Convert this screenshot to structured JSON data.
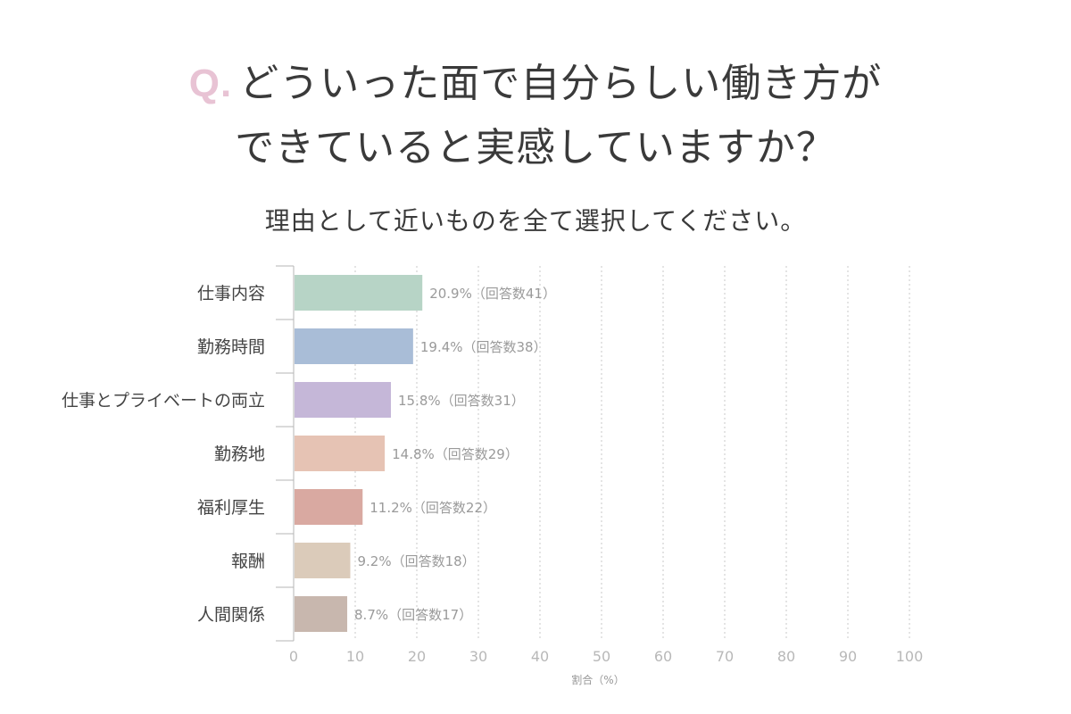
{
  "title": {
    "prefix": "Q.",
    "line1": "どういった面で自分らしい働き方が",
    "line2": "できていると実感していますか？"
  },
  "subtitle": "理由として近いものを全て選択してください。",
  "chart_data": {
    "type": "bar",
    "orientation": "horizontal",
    "categories": [
      "仕事内容",
      "勤務時間",
      "仕事とプライベートの両立",
      "勤務地",
      "福利厚生",
      "報酬",
      "人間関係"
    ],
    "values": [
      20.9,
      19.4,
      15.8,
      14.8,
      11.2,
      9.2,
      8.7
    ],
    "value_labels": [
      "20.9%（回答数41）",
      "19.4%（回答数38）",
      "15.8%（回答数31）",
      "14.8%（回答数29）",
      "11.2%（回答数22）",
      "9.2%（回答数18）",
      "8.7%（回答数17）"
    ],
    "bar_colors": [
      "#b7d4c6",
      "#a9bdd7",
      "#c5b7d8",
      "#e6c3b4",
      "#d9a9a1",
      "#dbcbba",
      "#c8b7ae"
    ],
    "xlim": [
      0,
      100
    ],
    "xticks": [
      0,
      10,
      20,
      30,
      40,
      50,
      60,
      70,
      80,
      90,
      100
    ],
    "xlabel": "割合（%）",
    "grid": "vertical dotted"
  }
}
